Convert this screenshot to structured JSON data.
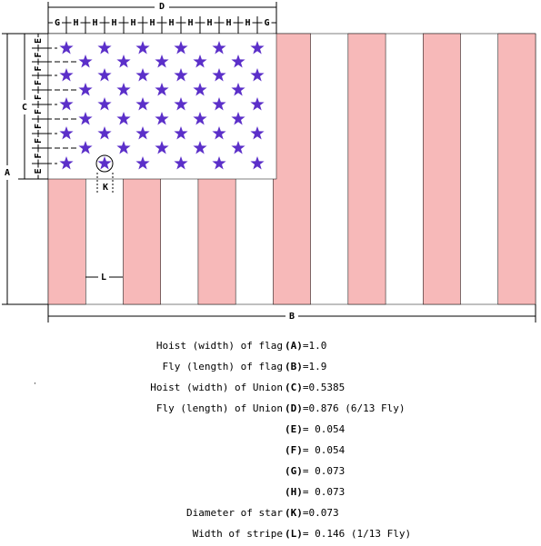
{
  "diagram": {
    "dimensions": {
      "A": "A",
      "B": "B",
      "C": "C",
      "D": "D",
      "K": "K",
      "L": "L"
    },
    "top_segments": [
      "G",
      "H",
      "H",
      "H",
      "H",
      "H",
      "H",
      "H",
      "H",
      "H",
      "H",
      "G"
    ],
    "side_segments": [
      "E",
      "F",
      "F",
      "F",
      "F",
      "F",
      "F",
      "F",
      "F",
      "E"
    ],
    "specs": [
      {
        "label": "Hoist (width) of flag",
        "code": "(A)",
        "value": "=1.0"
      },
      {
        "label": "Fly (length) of flag",
        "code": "(B)",
        "value": "=1.9"
      },
      {
        "label": "Hoist (width) of Union",
        "code": "(C)",
        "value": "=0.5385"
      },
      {
        "label": "Fly (length) of Union",
        "code": "(D)",
        "value": "=0.876 (6/13 Fly)"
      },
      {
        "code": "(E)",
        "value": "= 0.054"
      },
      {
        "code": "(F)",
        "value": "= 0.054"
      },
      {
        "code": "(G)",
        "value": "= 0.073"
      },
      {
        "code": "(H)",
        "value": "= 0.073"
      },
      {
        "label": "Diameter of star",
        "code": "(K)",
        "value": "=0.073"
      },
      {
        "label": "Width of stripe",
        "code": "(L)",
        "value": "= 0.146 (1/13 Fly)"
      }
    ]
  }
}
